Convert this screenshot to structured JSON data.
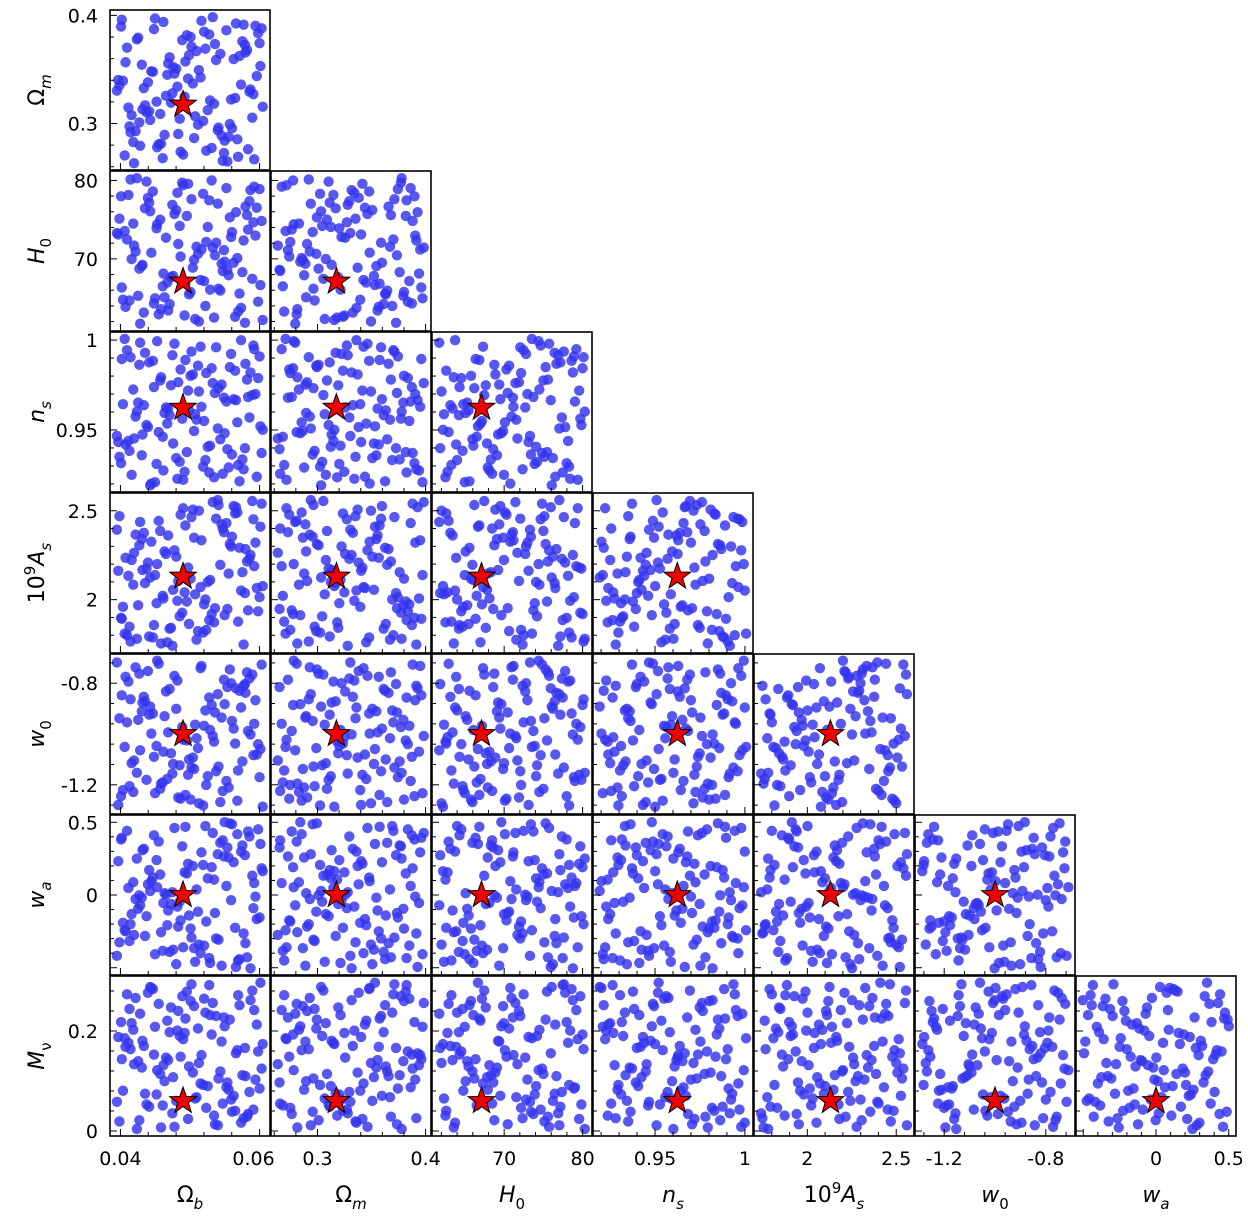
{
  "chart_data": {
    "type": "scatter",
    "layout": "corner-plot",
    "parameters": [
      {
        "key": "Ob",
        "label": "Ω",
        "sub": "b",
        "sup": "",
        "range": [
          0.0385,
          0.0615
        ],
        "ticks": [
          0.04,
          0.06
        ],
        "tick_labels": [
          "0.04",
          "0.06"
        ],
        "fiducial": 0.049
      },
      {
        "key": "Om",
        "label": "Ω",
        "sub": "m",
        "sup": "",
        "range": [
          0.257,
          0.405
        ],
        "ticks": [
          0.3,
          0.4
        ],
        "tick_labels": [
          "0.3",
          "0.4"
        ],
        "fiducial": 0.3175
      },
      {
        "key": "H0",
        "label": "H",
        "sub": "0",
        "sup": "",
        "range": [
          60.8,
          81.2
        ],
        "ticks": [
          70,
          80
        ],
        "tick_labels": [
          "70",
          "80"
        ],
        "fiducial": 67.11
      },
      {
        "key": "ns",
        "label": "n",
        "sub": "s",
        "sup": "",
        "range": [
          0.9155,
          1.0045
        ],
        "ticks": [
          0.95,
          1.0
        ],
        "tick_labels": [
          "0.95",
          "1"
        ],
        "fiducial": 0.9624
      },
      {
        "key": "As",
        "label": "A",
        "sub": "s",
        "sup": "9",
        "prefix": "10",
        "range": [
          1.7,
          2.6
        ],
        "ticks": [
          2.0,
          2.5
        ],
        "tick_labels": [
          "2",
          "2.5"
        ],
        "fiducial": 2.13
      },
      {
        "key": "w0",
        "label": "w",
        "sub": "0",
        "sup": "",
        "range": [
          -1.315,
          -0.685
        ],
        "ticks": [
          -1.2,
          -0.8
        ],
        "tick_labels": [
          "-1.2",
          "-0.8"
        ],
        "fiducial": -1.0
      },
      {
        "key": "wa",
        "label": "w",
        "sub": "a",
        "sup": "",
        "range": [
          -0.55,
          0.55
        ],
        "ticks": [
          0.0,
          0.5
        ],
        "tick_labels": [
          "0",
          "0.5"
        ],
        "fiducial": 0.0
      },
      {
        "key": "Mnu",
        "label": "M",
        "sub": "ν",
        "sup": "",
        "range": [
          -0.01,
          0.31
        ],
        "ticks": [
          0.0,
          0.2
        ],
        "tick_labels": [
          "0",
          "0.2"
        ],
        "fiducial": 0.06
      }
    ],
    "y_axis_ticks": {
      "Om": {
        "ticks": [
          0.3,
          0.4
        ],
        "tick_labels": [
          "0.3",
          "0.4"
        ]
      },
      "H0": {
        "ticks": [
          70,
          80
        ],
        "tick_labels": [
          "70",
          "80"
        ]
      },
      "ns": {
        "ticks": [
          0.95,
          1.0
        ],
        "tick_labels": [
          "0.95",
          "1"
        ]
      },
      "As": {
        "ticks": [
          2.0,
          2.5
        ],
        "tick_labels": [
          "2",
          "2.5"
        ]
      },
      "w0": {
        "ticks": [
          -1.2,
          -0.8
        ],
        "tick_labels": [
          "-1.2",
          "-0.8"
        ]
      },
      "wa": {
        "ticks": [
          0.0,
          0.5
        ],
        "tick_labels": [
          "0",
          "0.5"
        ]
      },
      "Mnu": {
        "ticks": [
          0.0,
          0.2
        ],
        "tick_labels": [
          "0",
          "0.2"
        ]
      }
    },
    "samples_per_panel": 120,
    "marker_color": "#3333ee",
    "fiducial_marker": {
      "shape": "star",
      "color": "#ee0000",
      "edge": "#000000"
    },
    "samples": {
      "description_free": true,
      "generator_seed": 20240611
    }
  }
}
